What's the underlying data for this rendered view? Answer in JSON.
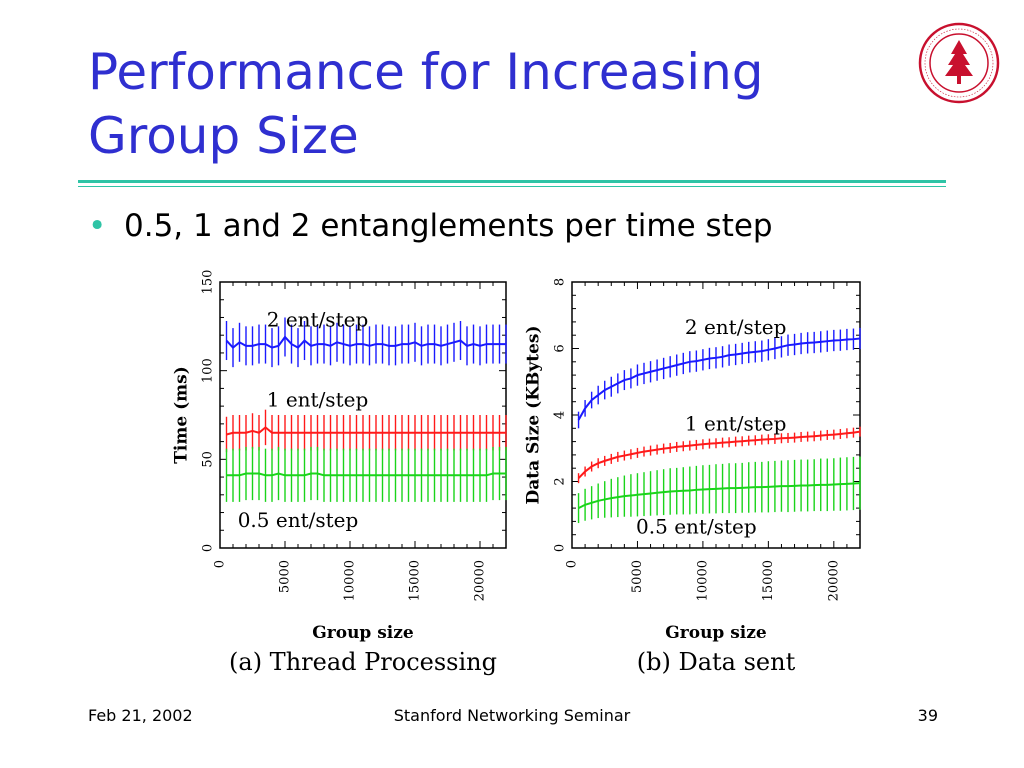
{
  "slide": {
    "title_line1": "Performance for Increasing",
    "title_line2": "Group Size",
    "bullet": "0.5, 1 and 2 entanglements per time step",
    "footer_left": "Feb 21, 2002",
    "footer_center": "Stanford Networking Seminar",
    "footer_right": "39",
    "logo_icon": "stanford-seal-icon",
    "colors": {
      "title": "#2f2fd0",
      "rule": "#2fc4a6",
      "seal": "#c8102e"
    }
  },
  "chart_data": [
    {
      "type": "line",
      "caption": "(a) Thread Processing",
      "xlabel": "Group size",
      "ylabel": "Time (ms)",
      "xlim": [
        0,
        22000
      ],
      "ylim": [
        0,
        150
      ],
      "xticks": [
        0,
        5000,
        10000,
        15000,
        20000
      ],
      "yticks": [
        0,
        50,
        100,
        150
      ],
      "error_bars": true,
      "series": [
        {
          "name": "2 ent/step",
          "color": "#1a1aff",
          "label_at": [
            7500,
            128
          ],
          "x": [
            500,
            1000,
            1500,
            2000,
            2500,
            3000,
            3500,
            4000,
            4500,
            5000,
            5500,
            6000,
            6500,
            7000,
            7500,
            8000,
            8500,
            9000,
            9500,
            10000,
            10500,
            11000,
            11500,
            12000,
            12500,
            13000,
            13500,
            14000,
            14500,
            15000,
            15500,
            16000,
            16500,
            17000,
            17500,
            18000,
            18500,
            19000,
            19500,
            20000,
            20500,
            21000,
            21500,
            22000
          ],
          "y": [
            117,
            113,
            116,
            114,
            114,
            115,
            115,
            113,
            114,
            119,
            115,
            113,
            117,
            114,
            115,
            115,
            114,
            116,
            115,
            114,
            115,
            115,
            114,
            115,
            115,
            114,
            114,
            115,
            115,
            116,
            114,
            115,
            115,
            114,
            115,
            116,
            117,
            114,
            115,
            114,
            115,
            115,
            115,
            115
          ],
          "err": [
            11,
            11,
            11,
            11,
            11,
            11,
            11,
            11,
            11,
            11,
            11,
            11,
            11,
            11,
            11,
            11,
            11,
            11,
            11,
            11,
            11,
            11,
            11,
            11,
            11,
            11,
            11,
            11,
            11,
            11,
            11,
            11,
            11,
            11,
            11,
            11,
            11,
            11,
            11,
            11,
            11,
            11,
            11,
            11
          ]
        },
        {
          "name": "1 ent/step",
          "color": "#ff1a1a",
          "label_at": [
            7500,
            83
          ],
          "x": [
            500,
            1000,
            1500,
            2000,
            2500,
            3000,
            3500,
            4000,
            4500,
            5000,
            5500,
            6000,
            6500,
            7000,
            7500,
            8000,
            8500,
            9000,
            9500,
            10000,
            10500,
            11000,
            11500,
            12000,
            12500,
            13000,
            13500,
            14000,
            14500,
            15000,
            15500,
            16000,
            16500,
            17000,
            17500,
            18000,
            18500,
            19000,
            19500,
            20000,
            20500,
            21000,
            21500,
            22000
          ],
          "y": [
            64,
            65,
            65,
            65,
            66,
            65,
            68,
            65,
            65,
            65,
            65,
            65,
            65,
            65,
            65,
            65,
            65,
            65,
            65,
            65,
            65,
            65,
            65,
            65,
            65,
            65,
            65,
            65,
            65,
            65,
            65,
            65,
            65,
            65,
            65,
            65,
            65,
            65,
            65,
            65,
            65,
            65,
            65,
            65
          ],
          "err": [
            10,
            10,
            10,
            10,
            10,
            10,
            10,
            10,
            10,
            10,
            10,
            10,
            10,
            10,
            10,
            10,
            10,
            10,
            10,
            10,
            10,
            10,
            10,
            10,
            10,
            10,
            10,
            10,
            10,
            10,
            10,
            10,
            10,
            10,
            10,
            10,
            10,
            10,
            10,
            10,
            10,
            10,
            10,
            10
          ]
        },
        {
          "name": "0.5 ent/step",
          "color": "#1ad41a",
          "label_at": [
            6000,
            15
          ],
          "x": [
            500,
            1000,
            1500,
            2000,
            2500,
            3000,
            3500,
            4000,
            4500,
            5000,
            5500,
            6000,
            6500,
            7000,
            7500,
            8000,
            8500,
            9000,
            9500,
            10000,
            10500,
            11000,
            11500,
            12000,
            12500,
            13000,
            13500,
            14000,
            14500,
            15000,
            15500,
            16000,
            16500,
            17000,
            17500,
            18000,
            18500,
            19000,
            19500,
            20000,
            20500,
            21000,
            21500,
            22000
          ],
          "y": [
            41,
            41,
            41,
            42,
            42,
            42,
            41,
            41,
            42,
            41,
            41,
            41,
            41,
            42,
            42,
            41,
            41,
            41,
            41,
            41,
            41,
            41,
            41,
            41,
            41,
            41,
            41,
            41,
            41,
            41,
            41,
            41,
            41,
            41,
            41,
            41,
            41,
            41,
            41,
            41,
            41,
            42,
            42,
            42
          ],
          "err": [
            15,
            15,
            15,
            15,
            15,
            15,
            15,
            15,
            15,
            15,
            15,
            15,
            15,
            15,
            15,
            15,
            15,
            15,
            15,
            15,
            15,
            15,
            15,
            15,
            15,
            15,
            15,
            15,
            15,
            15,
            15,
            15,
            15,
            15,
            15,
            15,
            15,
            15,
            15,
            15,
            15,
            15,
            15,
            15
          ]
        }
      ]
    },
    {
      "type": "line",
      "caption": "(b) Data sent",
      "xlabel": "Group size",
      "ylabel": "Data Size (KBytes)",
      "xlim": [
        0,
        22000
      ],
      "ylim": [
        0,
        8
      ],
      "xticks": [
        0,
        5000,
        10000,
        15000,
        20000
      ],
      "yticks": [
        0,
        2,
        4,
        6,
        8
      ],
      "error_bars": true,
      "series": [
        {
          "name": "2 ent/step",
          "color": "#1a1aff",
          "label_at": [
            12500,
            6.6
          ],
          "x": [
            500,
            1000,
            1500,
            2000,
            2500,
            3000,
            3500,
            4000,
            4500,
            5000,
            5500,
            6000,
            6500,
            7000,
            7500,
            8000,
            8500,
            9000,
            9500,
            10000,
            10500,
            11000,
            11500,
            12000,
            12500,
            13000,
            13500,
            14000,
            14500,
            15000,
            15500,
            16000,
            16500,
            17000,
            17500,
            18000,
            18500,
            19000,
            19500,
            20000,
            20500,
            21000,
            21500,
            22000
          ],
          "y": [
            3.85,
            4.2,
            4.45,
            4.6,
            4.75,
            4.85,
            4.95,
            5.05,
            5.1,
            5.2,
            5.25,
            5.3,
            5.35,
            5.4,
            5.45,
            5.5,
            5.55,
            5.6,
            5.62,
            5.66,
            5.7,
            5.72,
            5.75,
            5.8,
            5.82,
            5.85,
            5.88,
            5.9,
            5.92,
            5.96,
            6.0,
            6.05,
            6.1,
            6.12,
            6.15,
            6.17,
            6.18,
            6.2,
            6.22,
            6.24,
            6.25,
            6.27,
            6.28,
            6.3
          ],
          "err": [
            0.25,
            0.25,
            0.25,
            0.28,
            0.28,
            0.3,
            0.3,
            0.3,
            0.3,
            0.32,
            0.32,
            0.32,
            0.32,
            0.32,
            0.32,
            0.32,
            0.32,
            0.32,
            0.32,
            0.32,
            0.32,
            0.32,
            0.32,
            0.32,
            0.32,
            0.32,
            0.32,
            0.32,
            0.32,
            0.32,
            0.32,
            0.32,
            0.32,
            0.32,
            0.32,
            0.32,
            0.32,
            0.32,
            0.32,
            0.32,
            0.32,
            0.32,
            0.32,
            0.32
          ]
        },
        {
          "name": "1 ent/step",
          "color": "#ff1a1a",
          "label_at": [
            12500,
            3.7
          ],
          "x": [
            500,
            1000,
            1500,
            2000,
            2500,
            3000,
            3500,
            4000,
            4500,
            5000,
            5500,
            6000,
            6500,
            7000,
            7500,
            8000,
            8500,
            9000,
            9500,
            10000,
            10500,
            11000,
            11500,
            12000,
            12500,
            13000,
            13500,
            14000,
            14500,
            15000,
            15500,
            16000,
            16500,
            17000,
            17500,
            18000,
            18500,
            19000,
            19500,
            20000,
            20500,
            21000,
            21500,
            22000
          ],
          "y": [
            2.1,
            2.3,
            2.45,
            2.55,
            2.62,
            2.68,
            2.74,
            2.78,
            2.82,
            2.86,
            2.9,
            2.93,
            2.96,
            2.99,
            3.01,
            3.04,
            3.06,
            3.08,
            3.1,
            3.12,
            3.14,
            3.15,
            3.17,
            3.18,
            3.2,
            3.21,
            3.23,
            3.24,
            3.26,
            3.27,
            3.28,
            3.3,
            3.31,
            3.32,
            3.34,
            3.35,
            3.36,
            3.38,
            3.4,
            3.41,
            3.43,
            3.45,
            3.47,
            3.5
          ],
          "err": [
            0.15,
            0.15,
            0.15,
            0.15,
            0.15,
            0.15,
            0.15,
            0.15,
            0.15,
            0.15,
            0.15,
            0.15,
            0.15,
            0.15,
            0.15,
            0.15,
            0.15,
            0.15,
            0.15,
            0.15,
            0.15,
            0.15,
            0.15,
            0.15,
            0.15,
            0.15,
            0.15,
            0.15,
            0.15,
            0.15,
            0.15,
            0.15,
            0.15,
            0.15,
            0.15,
            0.15,
            0.15,
            0.15,
            0.15,
            0.15,
            0.15,
            0.15,
            0.15,
            0.15
          ]
        },
        {
          "name": "0.5 ent/step",
          "color": "#1ad41a",
          "label_at": [
            9500,
            0.6
          ],
          "x": [
            500,
            1000,
            1500,
            2000,
            2500,
            3000,
            3500,
            4000,
            4500,
            5000,
            5500,
            6000,
            6500,
            7000,
            7500,
            8000,
            8500,
            9000,
            9500,
            10000,
            10500,
            11000,
            11500,
            12000,
            12500,
            13000,
            13500,
            14000,
            14500,
            15000,
            15500,
            16000,
            16500,
            17000,
            17500,
            18000,
            18500,
            19000,
            19500,
            20000,
            20500,
            21000,
            21500,
            22000
          ],
          "y": [
            1.2,
            1.3,
            1.36,
            1.42,
            1.46,
            1.5,
            1.53,
            1.56,
            1.58,
            1.6,
            1.62,
            1.64,
            1.66,
            1.68,
            1.7,
            1.71,
            1.72,
            1.73,
            1.75,
            1.76,
            1.77,
            1.78,
            1.79,
            1.8,
            1.8,
            1.81,
            1.82,
            1.83,
            1.83,
            1.84,
            1.85,
            1.86,
            1.86,
            1.87,
            1.88,
            1.88,
            1.89,
            1.9,
            1.9,
            1.91,
            1.92,
            1.93,
            1.94,
            1.95
          ],
          "err": [
            0.45,
            0.48,
            0.5,
            0.52,
            0.55,
            0.58,
            0.6,
            0.62,
            0.64,
            0.65,
            0.66,
            0.67,
            0.68,
            0.69,
            0.7,
            0.7,
            0.71,
            0.72,
            0.72,
            0.73,
            0.73,
            0.74,
            0.74,
            0.75,
            0.75,
            0.75,
            0.76,
            0.76,
            0.76,
            0.77,
            0.77,
            0.77,
            0.78,
            0.78,
            0.78,
            0.78,
            0.78,
            0.79,
            0.79,
            0.79,
            0.8,
            0.8,
            0.8,
            0.8
          ]
        }
      ]
    }
  ]
}
